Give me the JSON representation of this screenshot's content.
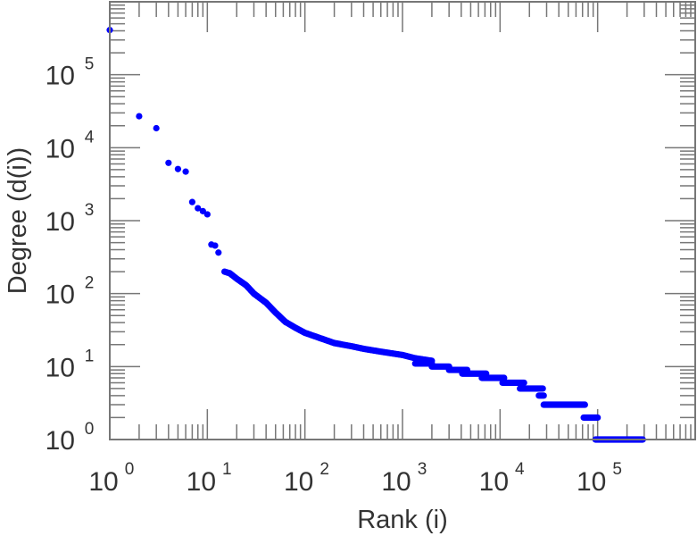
{
  "chart_data": {
    "type": "scatter",
    "title": "",
    "xlabel": "Rank (i)",
    "ylabel": "Degree (d(i))",
    "xscale": "log",
    "yscale": "log",
    "xlim": [
      1,
      1000000
    ],
    "ylim": [
      1,
      1000000
    ],
    "x_ticks": [
      {
        "base": "10",
        "exp": "0"
      },
      {
        "base": "10",
        "exp": "1"
      },
      {
        "base": "10",
        "exp": "2"
      },
      {
        "base": "10",
        "exp": "3"
      },
      {
        "base": "10",
        "exp": "4"
      },
      {
        "base": "10",
        "exp": "5"
      }
    ],
    "y_ticks": [
      {
        "base": "10",
        "exp": "0"
      },
      {
        "base": "10",
        "exp": "1"
      },
      {
        "base": "10",
        "exp": "2"
      },
      {
        "base": "10",
        "exp": "3"
      },
      {
        "base": "10",
        "exp": "4"
      },
      {
        "base": "10",
        "exp": "5"
      }
    ],
    "grid": false,
    "marker_color": "#0000ff",
    "points": [
      [
        1,
        410000
      ],
      [
        2,
        27000
      ],
      [
        3,
        18500
      ],
      [
        4,
        6200
      ],
      [
        5,
        5100
      ],
      [
        6,
        4700
      ],
      [
        7,
        1800
      ],
      [
        8,
        1480
      ],
      [
        9,
        1350
      ],
      [
        10,
        1220
      ],
      [
        11,
        470
      ],
      [
        12,
        455
      ],
      [
        13,
        365
      ]
    ],
    "curve": [
      [
        15,
        200
      ],
      [
        17,
        190
      ],
      [
        20,
        160
      ],
      [
        25,
        130
      ],
      [
        30,
        100
      ],
      [
        40,
        75
      ],
      [
        50,
        55
      ],
      [
        63,
        41
      ],
      [
        80,
        34
      ],
      [
        100,
        29
      ],
      [
        150,
        24
      ],
      [
        200,
        21
      ],
      [
        300,
        19
      ],
      [
        400,
        17.5
      ],
      [
        600,
        16
      ],
      [
        1000,
        14.4
      ],
      [
        1350,
        13
      ],
      [
        2000,
        12
      ]
    ],
    "plateaus": [
      {
        "degree": 11,
        "rank_from": 1350,
        "rank_to": 2000
      },
      {
        "degree": 10,
        "rank_from": 2000,
        "rank_to": 3000
      },
      {
        "degree": 9,
        "rank_from": 3000,
        "rank_to": 4600
      },
      {
        "degree": 8,
        "rank_from": 4100,
        "rank_to": 7200
      },
      {
        "degree": 7,
        "rank_from": 6500,
        "rank_to": 11000
      },
      {
        "degree": 6,
        "rank_from": 10600,
        "rank_to": 17600
      },
      {
        "degree": 5,
        "rank_from": 16000,
        "rank_to": 27400
      },
      {
        "degree": 4,
        "rank_from": 25000,
        "rank_to": 28000
      },
      {
        "degree": 3,
        "rank_from": 28000,
        "rank_to": 74000
      },
      {
        "degree": 2,
        "rank_from": 72000,
        "rank_to": 100000
      },
      {
        "degree": 1,
        "rank_from": 95000,
        "rank_to": 290000
      }
    ]
  }
}
